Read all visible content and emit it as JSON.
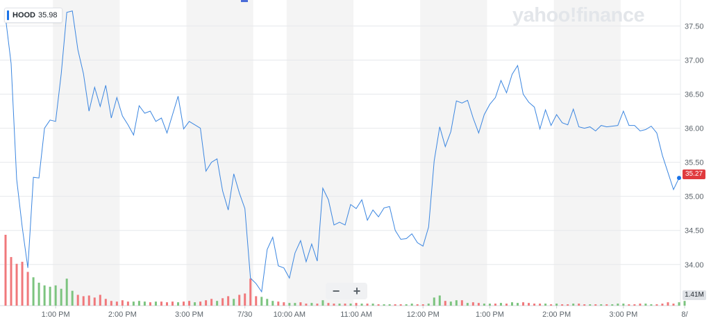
{
  "legend": {
    "symbol": "HOOD",
    "value": "35.98"
  },
  "brand": {
    "text": "yahoo!finance"
  },
  "zoom": {
    "minus": "−",
    "plus": "+"
  },
  "price_tag": "35.27",
  "volume_tag": "1.41M",
  "colors": {
    "line": "#3b86e0",
    "up": "#7cc47f",
    "down": "#f0787b",
    "band": "#f4f4f4",
    "last_price": "#e03a3e"
  },
  "chart_data": {
    "type": "line",
    "ylim": [
      33.6,
      37.8
    ],
    "y_ticks": [
      "37.50",
      "37.00",
      "36.50",
      "36.00",
      "35.50",
      "35.00",
      "34.50",
      "34.00"
    ],
    "y_tick_values": [
      37.5,
      37.0,
      36.5,
      36.0,
      35.5,
      35.0,
      34.5,
      34.0
    ],
    "x_ticks": [
      "1:00 PM",
      "2:00 PM",
      "3:00 PM",
      "7/30",
      "10:00 AM",
      "11:00 AM",
      "12:00 PM",
      "1:00 PM",
      "2:00 PM",
      "3:00 PM",
      "8/"
    ],
    "x_tick_index": [
      9,
      21,
      33,
      43,
      51,
      63,
      75,
      87,
      99,
      111,
      122
    ],
    "shaded_bands_index": [
      [
        8.5,
        20.5
      ],
      [
        32.5,
        44.5
      ],
      [
        50.5,
        62.5
      ],
      [
        74.5,
        86.5
      ],
      [
        98.5,
        110.5
      ]
    ],
    "series": [
      {
        "values": [
          37.62,
          36.95,
          35.25,
          34.55,
          33.95,
          35.28,
          35.27,
          36.0,
          36.12,
          36.1,
          36.8,
          37.7,
          37.72,
          37.15,
          36.8,
          36.25,
          36.6,
          36.32,
          36.63,
          36.15,
          36.45,
          36.18,
          36.05,
          35.9,
          36.33,
          36.22,
          36.25,
          36.1,
          36.15,
          35.93,
          36.2,
          36.47,
          35.99,
          36.1,
          36.05,
          36.0,
          35.37,
          35.5,
          35.55,
          35.08,
          34.8,
          35.33,
          35.05,
          34.82,
          33.8,
          33.72,
          33.6,
          34.22,
          34.4,
          33.98,
          33.95,
          33.8,
          34.17,
          34.35,
          34.04,
          34.3,
          34.05,
          35.12,
          34.95,
          34.58,
          34.62,
          34.58,
          34.88,
          34.82,
          34.95,
          34.65,
          34.8,
          34.7,
          34.83,
          34.85,
          34.5,
          34.37,
          34.38,
          34.45,
          34.32,
          34.27,
          34.55,
          35.52,
          36.02,
          35.73,
          35.95,
          36.4,
          36.37,
          36.41,
          36.15,
          35.93,
          36.2,
          36.35,
          36.45,
          36.7,
          36.52,
          36.79,
          36.92,
          36.5,
          36.38,
          36.31,
          35.99,
          36.27,
          36.04,
          36.2,
          36.08,
          36.05,
          36.28,
          36.02,
          36.0,
          36.02,
          35.96,
          36.04,
          36.02,
          36.03,
          36.04,
          36.25,
          36.04,
          36.04,
          35.96,
          35.98,
          36.03,
          35.93,
          35.6,
          35.35,
          35.1,
          35.27
        ]
      }
    ],
    "volume": {
      "max_label": "1.41M",
      "values": [
        1.05,
        0.72,
        0.62,
        0.65,
        0.5,
        0.42,
        0.34,
        0.3,
        0.28,
        0.3,
        0.25,
        0.4,
        0.22,
        0.16,
        0.14,
        0.15,
        0.12,
        0.16,
        0.1,
        0.07,
        0.06,
        0.08,
        0.06,
        0.06,
        0.07,
        0.06,
        0.05,
        0.06,
        0.06,
        0.05,
        0.06,
        0.05,
        0.06,
        0.07,
        0.05,
        0.06,
        0.08,
        0.1,
        0.07,
        0.11,
        0.14,
        0.1,
        0.16,
        0.18,
        0.4,
        0.14,
        0.13,
        0.1,
        0.07,
        0.06,
        0.05,
        0.04,
        0.04,
        0.05,
        0.03,
        0.04,
        0.03,
        0.08,
        0.04,
        0.03,
        0.03,
        0.03,
        0.03,
        0.04,
        0.03,
        0.03,
        0.03,
        0.02,
        0.02,
        0.02,
        0.02,
        0.02,
        0.02,
        0.03,
        0.02,
        0.02,
        0.03,
        0.12,
        0.15,
        0.07,
        0.06,
        0.08,
        0.08,
        0.04,
        0.05,
        0.04,
        0.03,
        0.03,
        0.03,
        0.04,
        0.03,
        0.05,
        0.04,
        0.05,
        0.04,
        0.03,
        0.03,
        0.03,
        0.02,
        0.03,
        0.02,
        0.02,
        0.03,
        0.03,
        0.02,
        0.02,
        0.02,
        0.02,
        0.02,
        0.02,
        0.03,
        0.03,
        0.02,
        0.02,
        0.03,
        0.03,
        0.02,
        0.02,
        0.03,
        0.05,
        0.03,
        0.05,
        0.07
      ],
      "up": [
        false,
        false,
        false,
        false,
        false,
        true,
        true,
        true,
        true,
        true,
        true,
        true,
        true,
        false,
        false,
        false,
        false,
        false,
        false,
        false,
        false,
        false,
        false,
        true,
        true,
        true,
        false,
        true,
        false,
        false,
        false,
        true,
        false,
        false,
        true,
        false,
        false,
        false,
        true,
        false,
        false,
        true,
        false,
        false,
        false,
        false,
        true,
        true,
        true,
        false,
        false,
        true,
        true,
        false,
        false,
        true,
        false,
        true,
        false,
        false,
        true,
        false,
        true,
        false,
        true,
        false,
        true,
        false,
        true,
        true,
        false,
        false,
        true,
        true,
        false,
        false,
        true,
        true,
        true,
        false,
        true,
        true,
        false,
        true,
        false,
        false,
        true,
        true,
        false,
        true,
        false,
        true,
        true,
        false,
        false,
        false,
        false,
        true,
        false,
        true,
        false,
        false,
        true,
        false,
        false,
        true,
        false,
        true,
        false,
        true,
        true,
        true,
        false,
        false,
        false,
        true,
        true,
        false,
        false,
        false,
        false,
        true,
        true
      ]
    }
  }
}
